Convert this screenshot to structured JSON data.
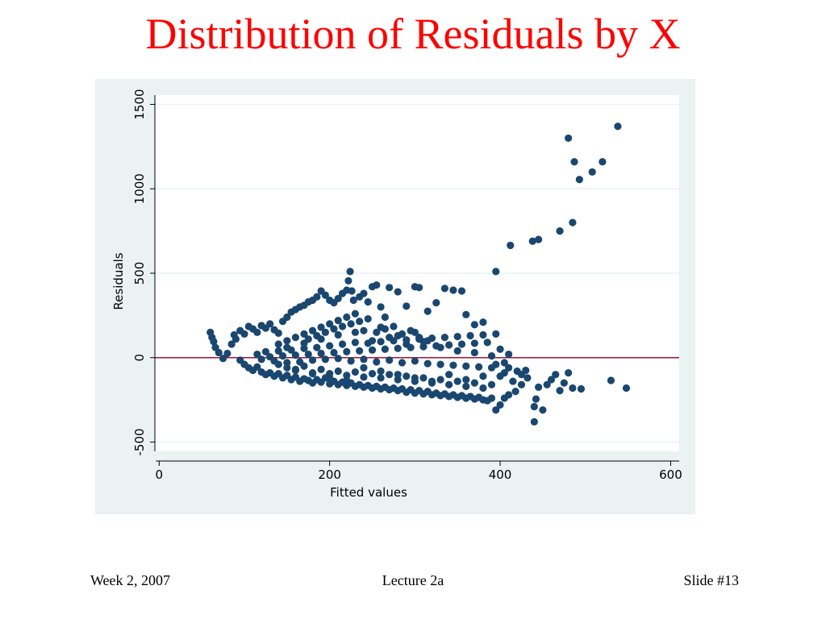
{
  "slide": {
    "title": "Distribution of Residuals by X",
    "footer_left": "Week 2, 2007",
    "footer_center": "Lecture 2a",
    "footer_right": "Slide #13"
  },
  "colors": {
    "title": "#ff0000",
    "panel_bg": "#eaf2f3",
    "plot_bg": "#ffffff",
    "grid": "#eaf2f3",
    "points": "#1a476f",
    "zero_line": "#a0162f"
  },
  "chart_data": {
    "type": "scatter",
    "title": "",
    "xlabel": "Fitted values",
    "ylabel": "Residuals",
    "xlim": [
      -5,
      610
    ],
    "ylim": [
      -555,
      1555
    ],
    "xticks": [
      0,
      200,
      400,
      600
    ],
    "yticks": [
      -500,
      0,
      500,
      1000,
      1500
    ],
    "grid": true,
    "reference_line": {
      "axis": "y",
      "value": 0
    },
    "points": [
      [
        60,
        150
      ],
      [
        62,
        120
      ],
      [
        64,
        95
      ],
      [
        66,
        60
      ],
      [
        70,
        30
      ],
      [
        75,
        -5
      ],
      [
        80,
        25
      ],
      [
        85,
        80
      ],
      [
        88,
        135
      ],
      [
        90,
        110
      ],
      [
        95,
        160
      ],
      [
        100,
        140
      ],
      [
        105,
        185
      ],
      [
        110,
        170
      ],
      [
        115,
        150
      ],
      [
        120,
        190
      ],
      [
        125,
        175
      ],
      [
        130,
        200
      ],
      [
        135,
        165
      ],
      [
        140,
        145
      ],
      [
        145,
        215
      ],
      [
        150,
        240
      ],
      [
        155,
        270
      ],
      [
        160,
        285
      ],
      [
        165,
        300
      ],
      [
        170,
        310
      ],
      [
        175,
        330
      ],
      [
        180,
        340
      ],
      [
        185,
        360
      ],
      [
        190,
        395
      ],
      [
        195,
        370
      ],
      [
        200,
        340
      ],
      [
        205,
        325
      ],
      [
        210,
        350
      ],
      [
        215,
        380
      ],
      [
        220,
        400
      ],
      [
        222,
        455
      ],
      [
        224,
        510
      ],
      [
        226,
        395
      ],
      [
        228,
        340
      ],
      [
        235,
        360
      ],
      [
        240,
        380
      ],
      [
        245,
        330
      ],
      [
        250,
        420
      ],
      [
        255,
        430
      ],
      [
        260,
        300
      ],
      [
        265,
        240
      ],
      [
        270,
        415
      ],
      [
        280,
        390
      ],
      [
        290,
        305
      ],
      [
        300,
        420
      ],
      [
        305,
        415
      ],
      [
        315,
        275
      ],
      [
        325,
        325
      ],
      [
        335,
        410
      ],
      [
        345,
        400
      ],
      [
        355,
        395
      ],
      [
        360,
        255
      ],
      [
        370,
        195
      ],
      [
        380,
        210
      ],
      [
        95,
        -15
      ],
      [
        100,
        -40
      ],
      [
        105,
        -60
      ],
      [
        110,
        -75
      ],
      [
        115,
        -55
      ],
      [
        120,
        -85
      ],
      [
        125,
        -100
      ],
      [
        130,
        -90
      ],
      [
        135,
        -110
      ],
      [
        140,
        -95
      ],
      [
        145,
        -120
      ],
      [
        150,
        -105
      ],
      [
        155,
        -130
      ],
      [
        160,
        -115
      ],
      [
        165,
        -140
      ],
      [
        170,
        -125
      ],
      [
        175,
        -135
      ],
      [
        180,
        -150
      ],
      [
        185,
        -130
      ],
      [
        190,
        -145
      ],
      [
        195,
        -120
      ],
      [
        200,
        -155
      ],
      [
        205,
        -140
      ],
      [
        210,
        -160
      ],
      [
        215,
        -145
      ],
      [
        220,
        -165
      ],
      [
        225,
        -150
      ],
      [
        230,
        -170
      ],
      [
        235,
        -160
      ],
      [
        240,
        -175
      ],
      [
        245,
        -165
      ],
      [
        250,
        -180
      ],
      [
        255,
        -170
      ],
      [
        260,
        -185
      ],
      [
        265,
        -175
      ],
      [
        270,
        -190
      ],
      [
        275,
        -180
      ],
      [
        280,
        -195
      ],
      [
        285,
        -185
      ],
      [
        290,
        -205
      ],
      [
        295,
        -190
      ],
      [
        300,
        -210
      ],
      [
        305,
        -195
      ],
      [
        310,
        -215
      ],
      [
        315,
        -200
      ],
      [
        320,
        -220
      ],
      [
        325,
        -210
      ],
      [
        330,
        -225
      ],
      [
        335,
        -215
      ],
      [
        340,
        -230
      ],
      [
        345,
        -220
      ],
      [
        350,
        -235
      ],
      [
        355,
        -225
      ],
      [
        360,
        -240
      ],
      [
        365,
        -230
      ],
      [
        370,
        -245
      ],
      [
        375,
        -235
      ],
      [
        380,
        -250
      ],
      [
        385,
        -255
      ],
      [
        390,
        -240
      ],
      [
        395,
        -310
      ],
      [
        400,
        -280
      ],
      [
        405,
        -240
      ],
      [
        410,
        -220
      ],
      [
        418,
        -200
      ],
      [
        425,
        -160
      ],
      [
        432,
        -120
      ],
      [
        440,
        -380
      ],
      [
        440,
        -290
      ],
      [
        442,
        -245
      ],
      [
        445,
        -175
      ],
      [
        450,
        -310
      ],
      [
        455,
        -160
      ],
      [
        460,
        -130
      ],
      [
        465,
        -100
      ],
      [
        470,
        -195
      ],
      [
        475,
        -150
      ],
      [
        480,
        -90
      ],
      [
        485,
        -180
      ],
      [
        495,
        -185
      ],
      [
        530,
        -135
      ],
      [
        548,
        -180
      ],
      [
        395,
        -40
      ],
      [
        400,
        -110
      ],
      [
        405,
        -90
      ],
      [
        410,
        -60
      ],
      [
        415,
        -140
      ],
      [
        420,
        -80
      ],
      [
        425,
        -100
      ],
      [
        430,
        -75
      ],
      [
        115,
        20
      ],
      [
        120,
        -10
      ],
      [
        125,
        35
      ],
      [
        130,
        5
      ],
      [
        135,
        -20
      ],
      [
        140,
        40
      ],
      [
        145,
        10
      ],
      [
        150,
        -30
      ],
      [
        155,
        45
      ],
      [
        160,
        15
      ],
      [
        165,
        -25
      ],
      [
        170,
        55
      ],
      [
        175,
        20
      ],
      [
        180,
        -15
      ],
      [
        185,
        60
      ],
      [
        190,
        25
      ],
      [
        195,
        -10
      ],
      [
        200,
        70
      ],
      [
        205,
        30
      ],
      [
        210,
        -5
      ],
      [
        215,
        80
      ],
      [
        220,
        35
      ],
      [
        225,
        -20
      ],
      [
        230,
        90
      ],
      [
        235,
        40
      ],
      [
        240,
        -10
      ],
      [
        245,
        85
      ],
      [
        250,
        45
      ],
      [
        255,
        -25
      ],
      [
        260,
        95
      ],
      [
        265,
        50
      ],
      [
        270,
        -15
      ],
      [
        275,
        100
      ],
      [
        280,
        55
      ],
      [
        285,
        -30
      ],
      [
        290,
        105
      ],
      [
        295,
        60
      ],
      [
        300,
        -20
      ],
      [
        305,
        110
      ],
      [
        310,
        65
      ],
      [
        315,
        -35
      ],
      [
        320,
        115
      ],
      [
        325,
        70
      ],
      [
        330,
        -40
      ],
      [
        335,
        120
      ],
      [
        340,
        75
      ],
      [
        345,
        -45
      ],
      [
        350,
        125
      ],
      [
        355,
        80
      ],
      [
        360,
        -50
      ],
      [
        365,
        130
      ],
      [
        370,
        85
      ],
      [
        375,
        -55
      ],
      [
        380,
        135
      ],
      [
        385,
        90
      ],
      [
        390,
        -60
      ],
      [
        395,
        140
      ],
      [
        400,
        50
      ],
      [
        405,
        -30
      ],
      [
        410,
        20
      ],
      [
        150,
        -60
      ],
      [
        160,
        -75
      ],
      [
        170,
        -50
      ],
      [
        180,
        -90
      ],
      [
        190,
        -70
      ],
      [
        200,
        -95
      ],
      [
        210,
        -80
      ],
      [
        220,
        -105
      ],
      [
        230,
        -85
      ],
      [
        240,
        -115
      ],
      [
        250,
        -95
      ],
      [
        260,
        -120
      ],
      [
        270,
        -100
      ],
      [
        280,
        -130
      ],
      [
        290,
        -110
      ],
      [
        300,
        -140
      ],
      [
        310,
        -120
      ],
      [
        320,
        -150
      ],
      [
        330,
        -130
      ],
      [
        340,
        -160
      ],
      [
        350,
        -140
      ],
      [
        360,
        -170
      ],
      [
        370,
        -150
      ],
      [
        380,
        -180
      ],
      [
        390,
        -160
      ],
      [
        175,
        110
      ],
      [
        185,
        130
      ],
      [
        195,
        150
      ],
      [
        205,
        170
      ],
      [
        215,
        185
      ],
      [
        225,
        200
      ],
      [
        235,
        215
      ],
      [
        245,
        230
      ],
      [
        255,
        150
      ],
      [
        265,
        170
      ],
      [
        275,
        185
      ],
      [
        285,
        140
      ],
      [
        295,
        160
      ],
      [
        305,
        120
      ],
      [
        315,
        100
      ],
      [
        140,
        80
      ],
      [
        150,
        100
      ],
      [
        160,
        120
      ],
      [
        170,
        140
      ],
      [
        180,
        160
      ],
      [
        190,
        180
      ],
      [
        200,
        200
      ],
      [
        210,
        220
      ],
      [
        220,
        240
      ],
      [
        230,
        260
      ],
      [
        140,
        -40
      ],
      [
        150,
        60
      ],
      [
        160,
        -70
      ],
      [
        170,
        85
      ],
      [
        180,
        -95
      ],
      [
        190,
        110
      ],
      [
        200,
        -120
      ],
      [
        210,
        135
      ],
      [
        220,
        -135
      ],
      [
        230,
        150
      ],
      [
        240,
        -60
      ],
      [
        250,
        100
      ],
      [
        260,
        -80
      ],
      [
        270,
        120
      ],
      [
        280,
        -100
      ],
      [
        290,
        80
      ],
      [
        300,
        -120
      ],
      [
        310,
        95
      ],
      [
        320,
        -140
      ],
      [
        330,
        60
      ],
      [
        340,
        -100
      ],
      [
        350,
        40
      ],
      [
        360,
        -130
      ],
      [
        370,
        30
      ],
      [
        380,
        -110
      ],
      [
        390,
        10
      ],
      [
        240,
        160
      ],
      [
        260,
        180
      ],
      [
        280,
        130
      ],
      [
        300,
        150
      ],
      [
        395,
        510
      ],
      [
        412,
        665
      ],
      [
        438,
        690
      ],
      [
        445,
        700
      ],
      [
        470,
        750
      ],
      [
        480,
        1300
      ],
      [
        485,
        800
      ],
      [
        487,
        1160
      ],
      [
        493,
        1055
      ],
      [
        508,
        1100
      ],
      [
        520,
        1160
      ],
      [
        538,
        1370
      ]
    ]
  }
}
